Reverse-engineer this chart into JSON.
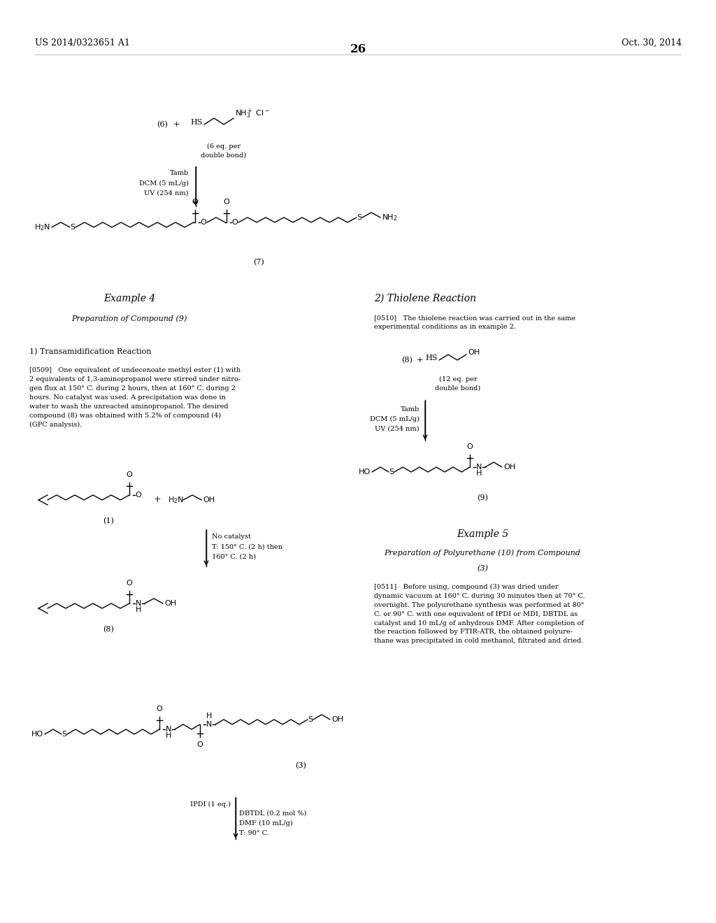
{
  "page_number": "26",
  "patent_number": "US 2014/0323651 A1",
  "patent_date": "Oct. 30, 2014",
  "background_color": "#ffffff",
  "text_color": "#000000",
  "fs_tiny": 7,
  "fs_small": 8,
  "fs_med": 9,
  "fs_large": 10
}
